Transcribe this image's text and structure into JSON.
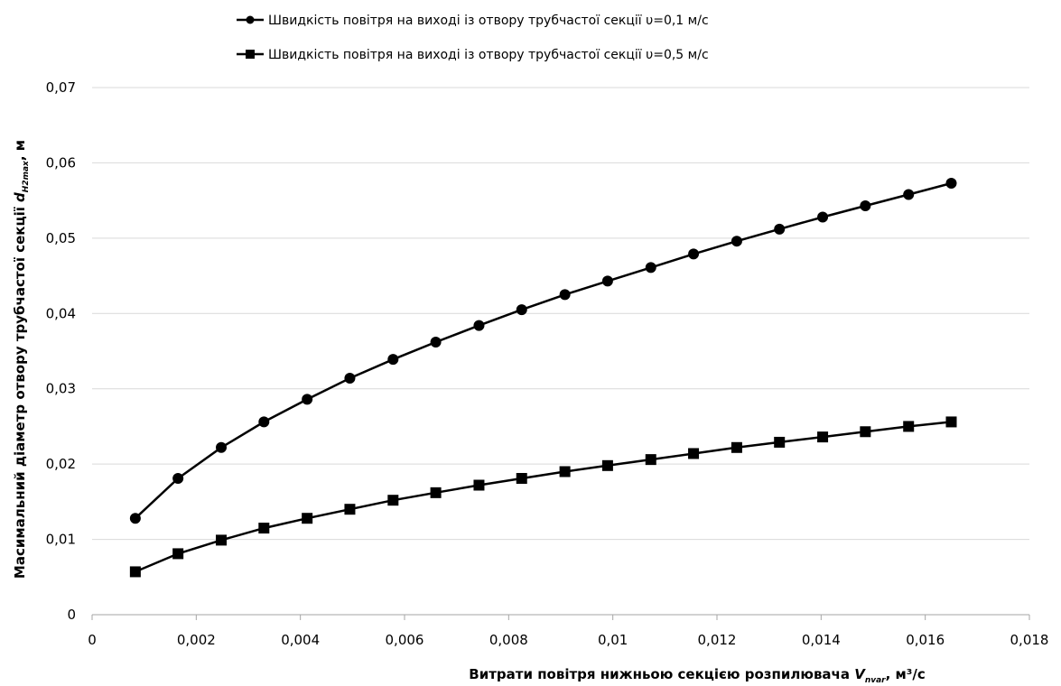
{
  "chart_data": {
    "type": "line",
    "xlabel": {
      "prefix": "Витрати повітря нижньою секцією розпилювача ",
      "symbol": "V",
      "subscript": "nvar",
      "suffix": ", м³/с"
    },
    "ylabel": {
      "prefix": "Масимальний діаметр отвору трубчастої секції ",
      "symbol": "d",
      "subscript": "H2max",
      "suffix": ", м"
    },
    "xlim": [
      0,
      0.018
    ],
    "ylim": [
      0,
      0.07
    ],
    "x_ticks": [
      0,
      0.002,
      0.004,
      0.006,
      0.008,
      0.01,
      0.012,
      0.014,
      0.016,
      0.018
    ],
    "x_tick_labels": [
      "0",
      "0,002",
      "0,004",
      "0,006",
      "0,008",
      "0,01",
      "0,012",
      "0,014",
      "0,016",
      "0,018"
    ],
    "y_ticks": [
      0,
      0.01,
      0.02,
      0.03,
      0.04,
      0.05,
      0.06,
      0.07
    ],
    "y_tick_labels": [
      "0",
      "0,01",
      "0,02",
      "0,03",
      "0,04",
      "0,05",
      "0,06",
      "0,07"
    ],
    "grid": "horizontal",
    "legend_position": "top",
    "x": [
      0.00083,
      0.00165,
      0.00248,
      0.0033,
      0.00413,
      0.00495,
      0.00578,
      0.0066,
      0.00743,
      0.00825,
      0.00908,
      0.0099,
      0.01073,
      0.01155,
      0.01238,
      0.0132,
      0.01403,
      0.01485,
      0.01568,
      0.0165
    ],
    "series": [
      {
        "name": "Швидкість повітря на виході із отвору трубчастої секції υ=0,1 м/с",
        "marker": "circle",
        "color": "#000000",
        "values": [
          0.0128,
          0.0181,
          0.0222,
          0.0256,
          0.0286,
          0.0314,
          0.0339,
          0.0362,
          0.0384,
          0.0405,
          0.0425,
          0.0443,
          0.0461,
          0.0479,
          0.0496,
          0.0512,
          0.0528,
          0.0543,
          0.0558,
          0.0573
        ]
      },
      {
        "name": "Швидкість повітря на виході із отвору трубчастої секції υ=0,5 м/с",
        "marker": "square",
        "color": "#000000",
        "values": [
          0.0057,
          0.0081,
          0.0099,
          0.0115,
          0.0128,
          0.014,
          0.0152,
          0.0162,
          0.0172,
          0.0181,
          0.019,
          0.0198,
          0.0206,
          0.0214,
          0.0222,
          0.0229,
          0.0236,
          0.0243,
          0.025,
          0.0256
        ]
      }
    ]
  }
}
